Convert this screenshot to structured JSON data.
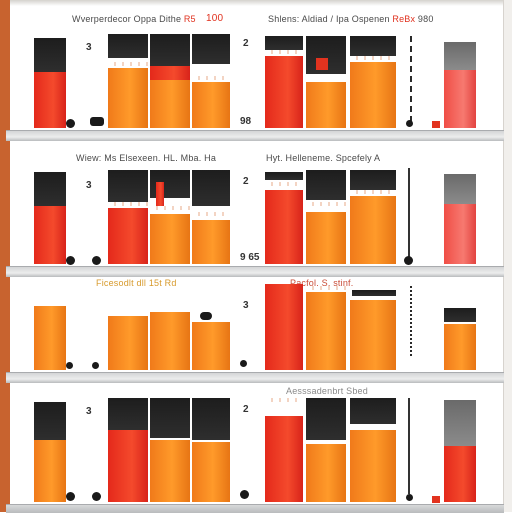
{
  "panels": [
    {
      "header_left": "Wverperdecor Oppa Dithe",
      "header_left_hl": "R5",
      "header_mid_num": "100",
      "header_right": "Shlens: Aldiad / Ipa Ospenen",
      "header_right_hl": "ReBx",
      "header_right_end": "980",
      "marker_left": "3",
      "marker_right": "2",
      "footer_num": "98"
    },
    {
      "header_left": "Wiew: Ms Elsexeen. HL. Mba. Ha",
      "header_right": "Hyt. Helleneme. Spcefely A",
      "marker_left": "3",
      "marker_right": "2",
      "footer_num": "9 65"
    },
    {
      "header_left": "Ficesodlt dll 15t Rd",
      "header_right": "Pacfol. S. stinf.",
      "marker_right": "3"
    },
    {
      "header_left": "",
      "header_right": "Aesssadenbrt Sbed",
      "marker_left": "3",
      "marker_right": "2"
    }
  ],
  "colors": {
    "red": "#e4291b",
    "orange": "#f07a1a",
    "black": "#1d1d1d",
    "gray": "#6a6a6a",
    "frame_orange": "#c8632f"
  }
}
